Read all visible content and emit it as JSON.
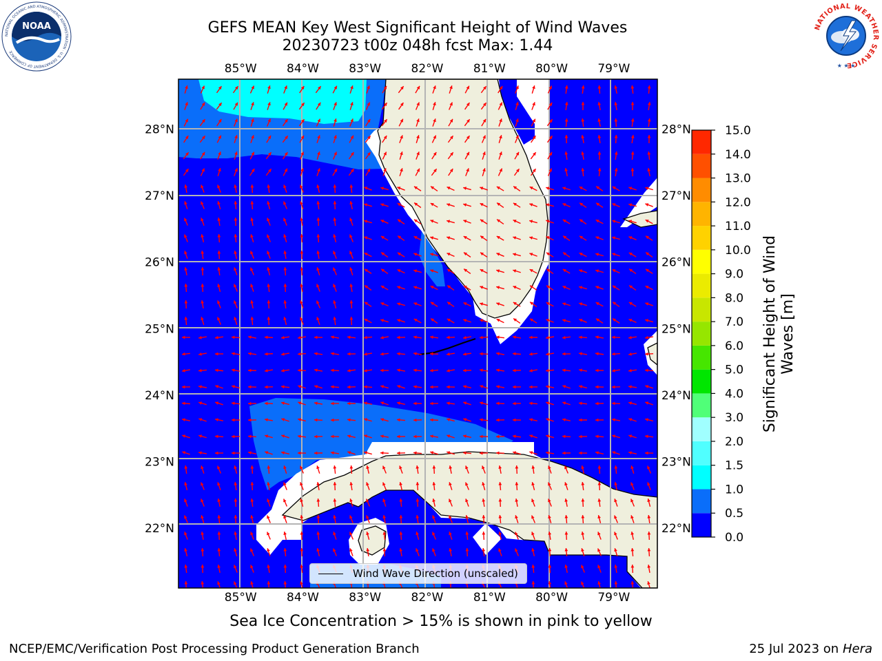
{
  "title": {
    "line1": "GEFS MEAN Key West Significant Height of Wind Waves",
    "line2": "20230723 t00z 048h fcst   Max: 1.44"
  },
  "logos": {
    "noaa_text": "NOAA",
    "noaa_ring_text": "NATIONAL OCEANIC AND ATMOSPHERIC ADMINISTRATION · U.S. DEPARTMENT OF COMMERCE",
    "nws_ring_text": "NATIONAL WEATHER SERVICE"
  },
  "map": {
    "lon_ticks": [
      "85°W",
      "84°W",
      "83°W",
      "82°W",
      "81°W",
      "80°W",
      "79°W"
    ],
    "lat_ticks": [
      "28°N",
      "27°N",
      "26°N",
      "25°N",
      "24°N",
      "23°N",
      "22°N"
    ],
    "lon_values": [
      -85,
      -84,
      -83,
      -82,
      -81,
      -80,
      -79
    ],
    "lat_values": [
      28,
      27,
      26,
      25,
      24,
      23,
      22
    ],
    "lon_range": [
      -86,
      -78.3
    ],
    "lat_range": [
      21.1,
      28.75
    ],
    "gridlines": true,
    "colors": {
      "ocean_base": "#0000ff",
      "wave_0_5_1": "#0a6efa",
      "wave_1_1_5": "#00ffff",
      "land": "#efefdd",
      "no_data": "#ffffff",
      "arrow": "#ff0000"
    },
    "legend": "Wind Wave Direction (unscaled)"
  },
  "colorbar": {
    "ticks": [
      "15.0",
      "14.0",
      "13.0",
      "12.0",
      "11.0",
      "10.0",
      "9.0",
      "8.0",
      "7.0",
      "6.0",
      "5.0",
      "4.0",
      "3.0",
      "2.0",
      "1.5",
      "1.0",
      "0.5",
      "0.0"
    ],
    "levels": [
      0,
      0.5,
      1,
      1.5,
      2,
      3,
      4,
      5,
      6,
      7,
      8,
      9,
      10,
      11,
      12,
      13,
      14,
      15
    ],
    "colors": [
      "#0000ff",
      "#0a6efa",
      "#00ffff",
      "#50ffff",
      "#a0ffff",
      "#50ff78",
      "#00e600",
      "#46e600",
      "#96e600",
      "#c8e600",
      "#ebeb00",
      "#ffff00",
      "#ffd200",
      "#ffb400",
      "#ff8c00",
      "#ff5000",
      "#ff2800",
      "#ff0000"
    ],
    "label_line1": "Significant Height of Wind",
    "label_line2": "Waves [m]"
  },
  "subtitle": "Sea Ice Concentration > 15% is shown in pink to yellow",
  "footer": {
    "left": "NCEP/EMC/Verification Post Processing Product Generation Branch",
    "right_prefix": "25 Jul 2023 on ",
    "right_host": "Hera"
  }
}
